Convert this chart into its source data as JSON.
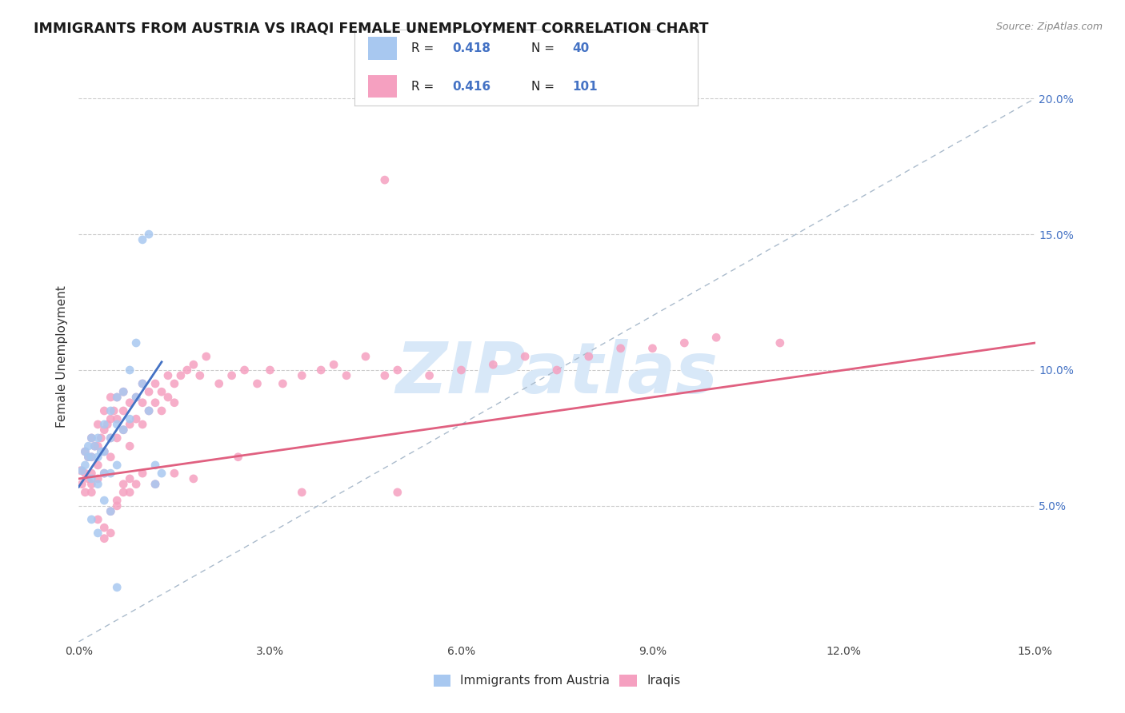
{
  "title": "IMMIGRANTS FROM AUSTRIA VS IRAQI FEMALE UNEMPLOYMENT CORRELATION CHART",
  "source": "Source: ZipAtlas.com",
  "ylabel": "Female Unemployment",
  "xlim": [
    0.0,
    0.15
  ],
  "ylim": [
    0.0,
    0.21
  ],
  "xtick_vals": [
    0.0,
    0.03,
    0.06,
    0.09,
    0.12,
    0.15
  ],
  "xtick_labels": [
    "0.0%",
    "3.0%",
    "6.0%",
    "9.0%",
    "12.0%",
    "15.0%"
  ],
  "ytick_vals": [
    0.05,
    0.1,
    0.15,
    0.2
  ],
  "ytick_labels": [
    "5.0%",
    "10.0%",
    "15.0%",
    "20.0%"
  ],
  "color_austria": "#A8C8F0",
  "color_iraq": "#F5A0C0",
  "color_line_austria": "#4472C4",
  "color_line_iraq": "#E06080",
  "color_diag": "#AABBCC",
  "watermark_text": "ZIPatlas",
  "watermark_color": "#D8E8F8",
  "legend_r1": "0.418",
  "legend_n1": "40",
  "legend_r2": "0.416",
  "legend_n2": "101",
  "legend_label1": "Immigrants from Austria",
  "legend_label2": "Iraqis",
  "austria_trend_x": [
    0.0,
    0.013
  ],
  "austria_trend_y": [
    0.057,
    0.103
  ],
  "iraq_trend_x": [
    0.0,
    0.15
  ],
  "iraq_trend_y": [
    0.06,
    0.11
  ],
  "austria_x": [
    0.0005,
    0.001,
    0.001,
    0.0015,
    0.0015,
    0.002,
    0.002,
    0.002,
    0.0025,
    0.003,
    0.003,
    0.003,
    0.0035,
    0.004,
    0.004,
    0.004,
    0.005,
    0.005,
    0.005,
    0.006,
    0.006,
    0.006,
    0.007,
    0.007,
    0.008,
    0.008,
    0.009,
    0.009,
    0.01,
    0.01,
    0.011,
    0.011,
    0.012,
    0.012,
    0.013,
    0.002,
    0.003,
    0.004,
    0.005,
    0.006
  ],
  "austria_y": [
    0.063,
    0.07,
    0.065,
    0.072,
    0.068,
    0.075,
    0.068,
    0.06,
    0.072,
    0.075,
    0.068,
    0.058,
    0.07,
    0.08,
    0.07,
    0.062,
    0.085,
    0.075,
    0.062,
    0.09,
    0.08,
    0.065,
    0.092,
    0.078,
    0.1,
    0.082,
    0.11,
    0.09,
    0.148,
    0.095,
    0.15,
    0.085,
    0.065,
    0.058,
    0.062,
    0.045,
    0.04,
    0.052,
    0.048,
    0.02
  ],
  "iraq_x": [
    0.0003,
    0.0005,
    0.001,
    0.001,
    0.001,
    0.0015,
    0.0015,
    0.002,
    0.002,
    0.002,
    0.002,
    0.002,
    0.0025,
    0.003,
    0.003,
    0.003,
    0.003,
    0.0035,
    0.004,
    0.004,
    0.004,
    0.004,
    0.0045,
    0.005,
    0.005,
    0.005,
    0.005,
    0.0055,
    0.006,
    0.006,
    0.006,
    0.007,
    0.007,
    0.007,
    0.008,
    0.008,
    0.008,
    0.009,
    0.009,
    0.01,
    0.01,
    0.01,
    0.011,
    0.011,
    0.012,
    0.012,
    0.013,
    0.013,
    0.014,
    0.014,
    0.015,
    0.015,
    0.016,
    0.017,
    0.018,
    0.019,
    0.02,
    0.022,
    0.024,
    0.026,
    0.028,
    0.03,
    0.032,
    0.035,
    0.038,
    0.04,
    0.042,
    0.045,
    0.048,
    0.05,
    0.055,
    0.06,
    0.065,
    0.07,
    0.075,
    0.08,
    0.085,
    0.09,
    0.095,
    0.1,
    0.003,
    0.004,
    0.005,
    0.006,
    0.007,
    0.008,
    0.004,
    0.005,
    0.006,
    0.007,
    0.008,
    0.009,
    0.01,
    0.012,
    0.015,
    0.018,
    0.025,
    0.035,
    0.05,
    0.11,
    0.048
  ],
  "iraq_y": [
    0.063,
    0.058,
    0.07,
    0.062,
    0.055,
    0.068,
    0.06,
    0.075,
    0.068,
    0.062,
    0.055,
    0.058,
    0.072,
    0.08,
    0.072,
    0.065,
    0.06,
    0.075,
    0.085,
    0.078,
    0.07,
    0.062,
    0.08,
    0.09,
    0.082,
    0.075,
    0.068,
    0.085,
    0.09,
    0.082,
    0.075,
    0.092,
    0.085,
    0.078,
    0.088,
    0.08,
    0.072,
    0.09,
    0.082,
    0.095,
    0.088,
    0.08,
    0.092,
    0.085,
    0.095,
    0.088,
    0.092,
    0.085,
    0.098,
    0.09,
    0.095,
    0.088,
    0.098,
    0.1,
    0.102,
    0.098,
    0.105,
    0.095,
    0.098,
    0.1,
    0.095,
    0.1,
    0.095,
    0.098,
    0.1,
    0.102,
    0.098,
    0.105,
    0.098,
    0.1,
    0.098,
    0.1,
    0.102,
    0.105,
    0.1,
    0.105,
    0.108,
    0.108,
    0.11,
    0.112,
    0.045,
    0.042,
    0.048,
    0.052,
    0.058,
    0.055,
    0.038,
    0.04,
    0.05,
    0.055,
    0.06,
    0.058,
    0.062,
    0.058,
    0.062,
    0.06,
    0.068,
    0.055,
    0.055,
    0.11,
    0.17
  ]
}
